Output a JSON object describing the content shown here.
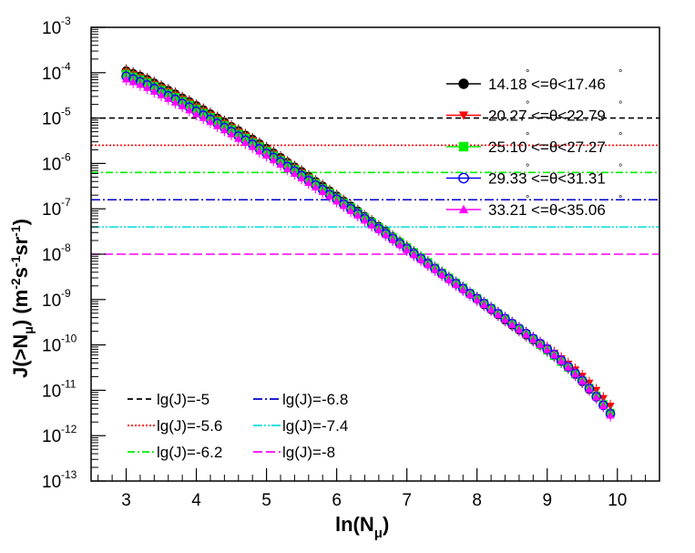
{
  "chart_data": {
    "type": "scatter",
    "xlabel": "ln(N",
    "xlabel_sub": "μ",
    "xlabel_close": ")",
    "ylabel_parts": [
      "J(>N",
      "μ",
      ") (m",
      "-2",
      "s",
      "-1",
      "sr",
      "-1",
      ")"
    ],
    "xlim": [
      2.5,
      10.6
    ],
    "ylim_log10": [
      -13,
      -3
    ],
    "yscale": "log",
    "x_ticks": [
      3,
      4,
      5,
      6,
      7,
      8,
      9,
      10
    ],
    "x_tick_labels": [
      "3",
      "4",
      "5",
      "6",
      "7",
      "8",
      "9",
      "10"
    ],
    "y_ticks_log10": [
      -13,
      -12,
      -11,
      -10,
      -9,
      -8,
      -7,
      -6,
      -5,
      -4,
      -3
    ],
    "y_tick_base": "10",
    "y_tick_exponents": [
      "-13",
      "-12",
      "-11",
      "-10",
      "-9",
      "-8",
      "-7",
      "-6",
      "-5",
      "-4",
      "-3"
    ],
    "x": [
      3.0,
      3.1,
      3.2,
      3.3,
      3.4,
      3.5,
      3.6,
      3.7,
      3.8,
      3.9,
      4.0,
      4.1,
      4.2,
      4.3,
      4.4,
      4.5,
      4.6,
      4.7,
      4.8,
      4.9,
      5.0,
      5.1,
      5.2,
      5.3,
      5.4,
      5.5,
      5.6,
      5.7,
      5.8,
      5.9,
      6.0,
      6.1,
      6.2,
      6.3,
      6.4,
      6.5,
      6.6,
      6.7,
      6.8,
      6.9,
      7.0,
      7.1,
      7.2,
      7.3,
      7.4,
      7.5,
      7.6,
      7.7,
      7.8,
      7.9,
      8.0,
      8.1,
      8.2,
      8.3,
      8.4,
      8.5,
      8.6,
      8.7,
      8.8,
      8.9,
      9.0,
      9.1,
      9.2,
      9.3,
      9.4,
      9.5,
      9.6,
      9.7,
      9.8,
      9.9
    ],
    "series": [
      {
        "name": "14.18°<=θ<17.46°",
        "label_main": "14.18",
        "label_rest": "<=θ<17.46",
        "marker": "circle-filled",
        "color": "#000000",
        "log10_values": [
          -3.96,
          -4.02,
          -4.08,
          -4.15,
          -4.23,
          -4.31,
          -4.39,
          -4.47,
          -4.56,
          -4.64,
          -4.73,
          -4.82,
          -4.91,
          -5.0,
          -5.09,
          -5.19,
          -5.28,
          -5.38,
          -5.47,
          -5.57,
          -5.67,
          -5.77,
          -5.87,
          -5.98,
          -6.08,
          -6.18,
          -6.29,
          -6.4,
          -6.5,
          -6.61,
          -6.72,
          -6.83,
          -6.94,
          -7.05,
          -7.17,
          -7.28,
          -7.39,
          -7.5,
          -7.62,
          -7.73,
          -7.85,
          -7.96,
          -8.08,
          -8.19,
          -8.31,
          -8.42,
          -8.53,
          -8.65,
          -8.76,
          -8.88,
          -8.99,
          -9.11,
          -9.22,
          -9.33,
          -9.45,
          -9.56,
          -9.67,
          -9.78,
          -9.89,
          -10.0,
          -10.12,
          -10.24,
          -10.37,
          -10.5,
          -10.65,
          -10.81,
          -10.98,
          -11.15,
          -11.32,
          -11.5
        ]
      },
      {
        "name": "20.27°<=θ<22.79°",
        "label_main": "20.27",
        "label_rest": "<=θ<22.79",
        "marker": "triangle-down-filled",
        "color": "#ff0000",
        "log10_values": [
          -3.98,
          -4.04,
          -4.1,
          -4.17,
          -4.25,
          -4.33,
          -4.41,
          -4.49,
          -4.58,
          -4.66,
          -4.75,
          -4.84,
          -4.93,
          -5.02,
          -5.11,
          -5.2,
          -5.3,
          -5.39,
          -5.49,
          -5.59,
          -5.69,
          -5.79,
          -5.89,
          -5.99,
          -6.09,
          -6.2,
          -6.3,
          -6.41,
          -6.52,
          -6.62,
          -6.73,
          -6.84,
          -6.95,
          -7.06,
          -7.17,
          -7.28,
          -7.39,
          -7.5,
          -7.62,
          -7.73,
          -7.84,
          -7.96,
          -8.07,
          -8.18,
          -8.3,
          -8.41,
          -8.52,
          -8.63,
          -8.74,
          -8.86,
          -8.97,
          -9.08,
          -9.19,
          -9.3,
          -9.41,
          -9.52,
          -9.63,
          -9.74,
          -9.85,
          -9.96,
          -10.07,
          -10.18,
          -10.3,
          -10.42,
          -10.55,
          -10.69,
          -10.84,
          -11.0,
          -11.18,
          -11.35
        ]
      },
      {
        "name": "25.10°<=θ<27.27°",
        "label_main": "25.10",
        "label_rest": "<=θ<27.27",
        "marker": "square-filled",
        "color": "#00ee00",
        "log10_values": [
          -4.03,
          -4.09,
          -4.15,
          -4.22,
          -4.3,
          -4.38,
          -4.46,
          -4.54,
          -4.63,
          -4.71,
          -4.8,
          -4.89,
          -4.98,
          -5.07,
          -5.16,
          -5.25,
          -5.35,
          -5.44,
          -5.54,
          -5.63,
          -5.73,
          -5.83,
          -5.93,
          -6.03,
          -6.13,
          -6.24,
          -6.34,
          -6.44,
          -6.55,
          -6.65,
          -6.76,
          -6.87,
          -6.97,
          -7.08,
          -7.19,
          -7.3,
          -7.41,
          -7.52,
          -7.63,
          -7.74,
          -7.85,
          -7.96,
          -8.07,
          -8.18,
          -8.3,
          -8.41,
          -8.52,
          -8.63,
          -8.74,
          -8.86,
          -8.97,
          -9.08,
          -9.19,
          -9.31,
          -9.42,
          -9.53,
          -9.65,
          -9.76,
          -9.88,
          -10.0,
          -10.12,
          -10.24,
          -10.37,
          -10.5,
          -10.64,
          -10.79,
          -10.95,
          -11.12,
          -11.31,
          -11.5
        ]
      },
      {
        "name": "29.33°<=θ<31.31°",
        "label_main": "29.33",
        "label_rest": "<=θ<31.31",
        "marker": "circle-open",
        "color": "#0000ff",
        "log10_values": [
          -4.08,
          -4.14,
          -4.2,
          -4.27,
          -4.35,
          -4.43,
          -4.51,
          -4.59,
          -4.68,
          -4.76,
          -4.85,
          -4.94,
          -5.03,
          -5.12,
          -5.21,
          -5.3,
          -5.4,
          -5.49,
          -5.58,
          -5.68,
          -5.78,
          -5.87,
          -5.97,
          -6.07,
          -6.17,
          -6.27,
          -6.38,
          -6.48,
          -6.58,
          -6.69,
          -6.79,
          -6.9,
          -7.0,
          -7.11,
          -7.22,
          -7.33,
          -7.44,
          -7.55,
          -7.66,
          -7.77,
          -7.88,
          -7.99,
          -8.1,
          -8.21,
          -8.32,
          -8.43,
          -8.54,
          -8.65,
          -8.76,
          -8.87,
          -8.98,
          -9.09,
          -9.2,
          -9.31,
          -9.42,
          -9.53,
          -9.64,
          -9.75,
          -9.86,
          -9.97,
          -10.09,
          -10.21,
          -10.34,
          -10.48,
          -10.63,
          -10.79,
          -10.96,
          -11.14,
          -11.33,
          -11.52
        ]
      },
      {
        "name": "33.21°<=θ<35.06°",
        "label_main": "33.21",
        "label_rest": "<=θ<35.06",
        "marker": "triangle-up-filled",
        "color": "#ff00ff",
        "log10_values": [
          -4.14,
          -4.2,
          -4.26,
          -4.33,
          -4.41,
          -4.49,
          -4.57,
          -4.65,
          -4.73,
          -4.82,
          -4.91,
          -4.99,
          -5.08,
          -5.17,
          -5.26,
          -5.35,
          -5.45,
          -5.54,
          -5.63,
          -5.73,
          -5.82,
          -5.92,
          -6.02,
          -6.12,
          -6.22,
          -6.32,
          -6.42,
          -6.52,
          -6.62,
          -6.72,
          -6.83,
          -6.93,
          -7.04,
          -7.14,
          -7.25,
          -7.36,
          -7.46,
          -7.57,
          -7.68,
          -7.79,
          -7.9,
          -8.01,
          -8.12,
          -8.23,
          -8.34,
          -8.45,
          -8.56,
          -8.67,
          -8.78,
          -8.89,
          -9.0,
          -9.11,
          -9.22,
          -9.33,
          -9.44,
          -9.55,
          -9.66,
          -9.77,
          -9.88,
          -9.99,
          -10.1,
          -10.22,
          -10.35,
          -10.49,
          -10.64,
          -10.8,
          -10.97,
          -11.15,
          -11.34,
          -11.55
        ]
      }
    ],
    "reference_lines": [
      {
        "label": "lg(J)=-5",
        "log10_value": -5,
        "color": "#000000",
        "dash": "6,4"
      },
      {
        "label": "lg(J)=-5.6",
        "log10_value": -5.6,
        "color": "#ff0000",
        "dash": "2,2"
      },
      {
        "label": "lg(J)=-6.2",
        "log10_value": -6.2,
        "color": "#00ee00",
        "dash": "8,3,2,3"
      },
      {
        "label": "lg(J)=-6.8",
        "log10_value": -6.8,
        "color": "#0000cc",
        "dash": "10,3,2,3"
      },
      {
        "label": "lg(J)=-7.4",
        "log10_value": -7.4,
        "color": "#00dddd",
        "dash": "10,2,2,2,2,2"
      },
      {
        "label": "lg(J)=-8",
        "log10_value": -8,
        "color": "#ff00ff",
        "dash": "10,4"
      }
    ],
    "degree_symbol": "°",
    "legend_series_position": "top-right",
    "legend_lines_position": "bottom-left",
    "grid": false
  }
}
